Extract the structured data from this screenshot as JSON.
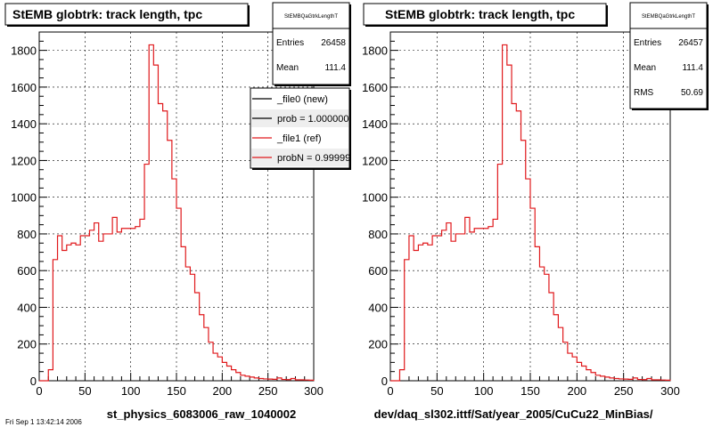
{
  "footer_stamp": "Fri Sep 1 13:42:14 2006",
  "chart_data": [
    {
      "type": "line",
      "style": "step-histogram",
      "title": "StEMB globtrk: track length, tpc",
      "xlabel": "st_physics_6083006_raw_1040002",
      "xlim": [
        0,
        300
      ],
      "ylim": [
        0,
        1900
      ],
      "x_ticks": [
        0,
        50,
        100,
        150,
        200,
        250,
        300
      ],
      "y_ticks": [
        0,
        200,
        400,
        600,
        800,
        1000,
        1200,
        1400,
        1600,
        1800
      ],
      "grid": true,
      "bin_width": 5,
      "x": [
        0,
        5,
        10,
        15,
        20,
        25,
        30,
        35,
        40,
        45,
        50,
        55,
        60,
        65,
        70,
        75,
        80,
        85,
        90,
        95,
        100,
        105,
        110,
        115,
        120,
        125,
        130,
        135,
        140,
        145,
        150,
        155,
        160,
        165,
        170,
        175,
        180,
        185,
        190,
        195,
        200,
        205,
        210,
        215,
        220,
        225,
        230,
        235,
        240,
        245,
        250,
        255,
        260,
        265,
        270,
        275,
        280,
        285,
        290,
        295
      ],
      "series": [
        {
          "name": "_file1 (ref)",
          "color": "#e0191c",
          "values": [
            0,
            0,
            60,
            660,
            790,
            710,
            740,
            750,
            740,
            790,
            790,
            820,
            860,
            760,
            800,
            800,
            890,
            810,
            830,
            830,
            830,
            840,
            880,
            1180,
            1830,
            1720,
            1510,
            1470,
            1310,
            1100,
            940,
            730,
            620,
            580,
            480,
            360,
            290,
            210,
            150,
            130,
            100,
            80,
            60,
            45,
            30,
            25,
            20,
            15,
            12,
            10,
            9,
            8,
            15,
            7,
            6,
            12,
            5,
            5,
            4,
            3
          ]
        }
      ],
      "stats_box": {
        "header": "StEMBQaGtrkLengthT",
        "rows": [
          {
            "label": "Entries",
            "value": "26458"
          },
          {
            "label": "Mean",
            "value": "111.4"
          }
        ]
      },
      "legend": {
        "placement": "top-right",
        "entries": [
          {
            "label": "_file0 (new)",
            "color": "#000000"
          },
          {
            "label": "prob = 1.000000",
            "color": "#000000"
          },
          {
            "label": "_file1 (ref)",
            "color": "#e0191c"
          },
          {
            "label": "probN = 0.99999",
            "color": "#e0191c"
          }
        ]
      }
    },
    {
      "type": "line",
      "style": "step-histogram",
      "title": "StEMB globtrk: track length, tpc",
      "xlabel": "dev/daq_sl302.ittf/Sat/year_2005/CuCu22_MinBias/",
      "xlim": [
        0,
        300
      ],
      "ylim": [
        0,
        1900
      ],
      "x_ticks": [
        0,
        50,
        100,
        150,
        200,
        250,
        300
      ],
      "y_ticks": [
        0,
        200,
        400,
        600,
        800,
        1000,
        1200,
        1400,
        1600,
        1800
      ],
      "grid": true,
      "bin_width": 5,
      "x": [
        0,
        5,
        10,
        15,
        20,
        25,
        30,
        35,
        40,
        45,
        50,
        55,
        60,
        65,
        70,
        75,
        80,
        85,
        90,
        95,
        100,
        105,
        110,
        115,
        120,
        125,
        130,
        135,
        140,
        145,
        150,
        155,
        160,
        165,
        170,
        175,
        180,
        185,
        190,
        195,
        200,
        205,
        210,
        215,
        220,
        225,
        230,
        235,
        240,
        245,
        250,
        255,
        260,
        265,
        270,
        275,
        280,
        285,
        290,
        295
      ],
      "series": [
        {
          "name": "",
          "color": "#e0191c",
          "values": [
            0,
            0,
            60,
            660,
            790,
            710,
            740,
            750,
            740,
            790,
            790,
            820,
            860,
            760,
            800,
            800,
            890,
            810,
            830,
            830,
            830,
            840,
            880,
            1180,
            1830,
            1720,
            1510,
            1470,
            1310,
            1100,
            940,
            730,
            620,
            580,
            480,
            360,
            290,
            210,
            150,
            130,
            100,
            80,
            60,
            45,
            30,
            25,
            20,
            15,
            12,
            10,
            9,
            8,
            15,
            7,
            6,
            12,
            5,
            5,
            4,
            3
          ]
        }
      ],
      "stats_box": {
        "header": "StEMBQaGtrkLengthT",
        "rows": [
          {
            "label": "Entries",
            "value": "26457"
          },
          {
            "label": "Mean",
            "value": "111.4"
          },
          {
            "label": "RMS",
            "value": "50.69"
          }
        ]
      }
    }
  ]
}
